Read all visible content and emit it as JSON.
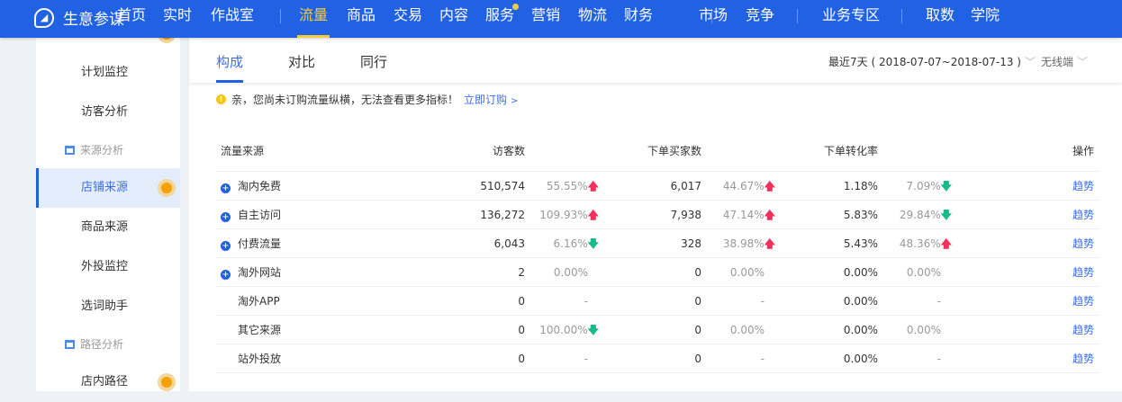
{
  "header": {
    "brand": "生意参谋",
    "nav": [
      {
        "label": "首页"
      },
      {
        "label": "实时"
      },
      {
        "label": "作战室"
      },
      {
        "label": "流量",
        "active": true
      },
      {
        "label": "商品"
      },
      {
        "label": "交易"
      },
      {
        "label": "内容"
      },
      {
        "label": "服务",
        "dot": true
      },
      {
        "label": "营销"
      },
      {
        "label": "物流"
      },
      {
        "label": "财务"
      },
      {
        "label": "市场"
      },
      {
        "label": "竞争"
      },
      {
        "label": "业务专区"
      },
      {
        "label": "取数"
      },
      {
        "label": "学院"
      }
    ],
    "accent": "#2062e3",
    "active_color": "#f5cd3c"
  },
  "sidebar": {
    "items": [
      {
        "label": "计划监控"
      },
      {
        "label": "访客分析"
      },
      {
        "label": "来源分析",
        "group": true
      },
      {
        "label": "店铺来源",
        "active": true
      },
      {
        "label": "商品来源"
      },
      {
        "label": "外投监控"
      },
      {
        "label": "选词助手"
      },
      {
        "label": "路径分析",
        "group": true
      },
      {
        "label": "店内路径"
      }
    ]
  },
  "tabs": [
    {
      "label": "构成",
      "active": true
    },
    {
      "label": "对比"
    },
    {
      "label": "同行"
    }
  ],
  "filters": {
    "date": "最近7天 ( 2018-07-07~2018-07-13 )",
    "device": "无线端"
  },
  "notice": {
    "text": "亲，您尚未订购流量纵横，无法查看更多指标！",
    "link": "立即订购",
    "arrow": ">"
  },
  "table": {
    "headers": {
      "source": "流量来源",
      "visitors": "访客数",
      "buyers": "下单买家数",
      "rate": "下单转化率",
      "action": "操作"
    },
    "rows": [
      {
        "source": "淘内免费",
        "expand": true,
        "visitors": "510,574",
        "visitors_pct": "55.55%",
        "visitors_dir": "up",
        "buyers": "6,017",
        "buyers_pct": "44.67%",
        "buyers_dir": "up",
        "rate": "1.18%",
        "rate_pct": "7.09%",
        "rate_dir": "down",
        "action": "趋势"
      },
      {
        "source": "自主访问",
        "expand": true,
        "visitors": "136,272",
        "visitors_pct": "109.93%",
        "visitors_dir": "up",
        "buyers": "7,938",
        "buyers_pct": "47.14%",
        "buyers_dir": "up",
        "rate": "5.83%",
        "rate_pct": "29.84%",
        "rate_dir": "down",
        "action": "趋势"
      },
      {
        "source": "付费流量",
        "expand": true,
        "visitors": "6,043",
        "visitors_pct": "6.16%",
        "visitors_dir": "down",
        "buyers": "328",
        "buyers_pct": "38.98%",
        "buyers_dir": "up",
        "rate": "5.43%",
        "rate_pct": "48.36%",
        "rate_dir": "up",
        "action": "趋势"
      },
      {
        "source": "淘外网站",
        "expand": true,
        "visitors": "2",
        "visitors_pct": "0.00%",
        "visitors_dir": "",
        "buyers": "0",
        "buyers_pct": "0.00%",
        "buyers_dir": "",
        "rate": "0.00%",
        "rate_pct": "0.00%",
        "rate_dir": "",
        "action": "趋势"
      },
      {
        "source": "淘外APP",
        "expand": false,
        "visitors": "0",
        "visitors_pct": "-",
        "visitors_dir": "",
        "buyers": "0",
        "buyers_pct": "-",
        "buyers_dir": "",
        "rate": "0.00%",
        "rate_pct": "-",
        "rate_dir": "",
        "action": "趋势"
      },
      {
        "source": "其它来源",
        "expand": false,
        "visitors": "0",
        "visitors_pct": "100.00%",
        "visitors_dir": "down",
        "buyers": "0",
        "buyers_pct": "0.00%",
        "buyers_dir": "",
        "rate": "0.00%",
        "rate_pct": "0.00%",
        "rate_dir": "",
        "action": "趋势"
      },
      {
        "source": "站外投放",
        "expand": false,
        "visitors": "0",
        "visitors_pct": "-",
        "visitors_dir": "",
        "buyers": "0",
        "buyers_pct": "-",
        "buyers_dir": "",
        "rate": "0.00%",
        "rate_pct": "-",
        "rate_dir": "",
        "action": "趋势"
      }
    ]
  }
}
